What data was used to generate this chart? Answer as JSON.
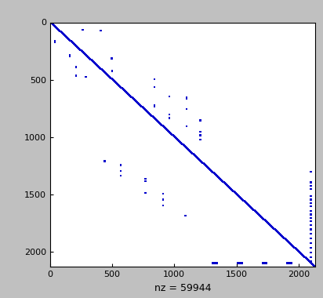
{
  "matrix_size": 2132,
  "nz": 59944,
  "dot_color": "#0000CC",
  "bg_color": "#FFFFFF",
  "frame_bg": "#C0C0C0",
  "xlabel": "nz = 59944",
  "yticks": [
    0,
    500,
    1000,
    1500,
    2000
  ],
  "xticks": [
    0,
    500,
    1000,
    1500,
    2000
  ],
  "band_halfwidth": 13,
  "seed": 12345,
  "off_diag_blocks": [
    {
      "r0": 60,
      "c0": 250,
      "r1": 75,
      "c1": 270
    },
    {
      "r0": 70,
      "c0": 400,
      "r1": 82,
      "c1": 415
    },
    {
      "r0": 155,
      "c0": 30,
      "r1": 170,
      "c1": 45
    },
    {
      "r0": 170,
      "c0": 30,
      "r1": 182,
      "c1": 45
    },
    {
      "r0": 280,
      "c0": 150,
      "r1": 295,
      "c1": 165
    },
    {
      "r0": 295,
      "c0": 150,
      "r1": 310,
      "c1": 165
    },
    {
      "r0": 310,
      "c0": 485,
      "r1": 325,
      "c1": 502
    },
    {
      "r0": 380,
      "c0": 200,
      "r1": 392,
      "c1": 215
    },
    {
      "r0": 390,
      "c0": 200,
      "r1": 402,
      "c1": 215
    },
    {
      "r0": 420,
      "c0": 490,
      "r1": 435,
      "c1": 505
    },
    {
      "r0": 460,
      "c0": 200,
      "r1": 475,
      "c1": 215
    },
    {
      "r0": 470,
      "c0": 280,
      "r1": 485,
      "c1": 295
    },
    {
      "r0": 490,
      "c0": 830,
      "r1": 505,
      "c1": 845
    },
    {
      "r0": 560,
      "c0": 830,
      "r1": 574,
      "c1": 846
    },
    {
      "r0": 640,
      "c0": 950,
      "r1": 655,
      "c1": 966
    },
    {
      "r0": 650,
      "c0": 1090,
      "r1": 665,
      "c1": 1107
    },
    {
      "r0": 660,
      "c0": 1090,
      "r1": 675,
      "c1": 1107
    },
    {
      "r0": 720,
      "c0": 830,
      "r1": 734,
      "c1": 846
    },
    {
      "r0": 730,
      "c0": 830,
      "r1": 744,
      "c1": 846
    },
    {
      "r0": 750,
      "c0": 1090,
      "r1": 765,
      "c1": 1107
    },
    {
      "r0": 800,
      "c0": 950,
      "r1": 815,
      "c1": 966
    },
    {
      "r0": 830,
      "c0": 950,
      "r1": 845,
      "c1": 966
    },
    {
      "r0": 850,
      "c0": 1200,
      "r1": 866,
      "c1": 1216
    },
    {
      "r0": 900,
      "c0": 1090,
      "r1": 915,
      "c1": 1107
    },
    {
      "r0": 950,
      "c0": 1200,
      "r1": 965,
      "c1": 1216
    },
    {
      "r0": 980,
      "c0": 1200,
      "r1": 995,
      "c1": 1216
    },
    {
      "r0": 1020,
      "c0": 1200,
      "r1": 1035,
      "c1": 1216
    },
    {
      "r0": 1200,
      "c0": 430,
      "r1": 1215,
      "c1": 446
    },
    {
      "r0": 1210,
      "c0": 430,
      "r1": 1225,
      "c1": 446
    },
    {
      "r0": 1240,
      "c0": 560,
      "r1": 1255,
      "c1": 576
    },
    {
      "r0": 1290,
      "c0": 560,
      "r1": 1305,
      "c1": 576
    },
    {
      "r0": 1330,
      "c0": 560,
      "r1": 1345,
      "c1": 576
    },
    {
      "r0": 1360,
      "c0": 760,
      "r1": 1375,
      "c1": 776
    },
    {
      "r0": 1380,
      "c0": 760,
      "r1": 1395,
      "c1": 776
    },
    {
      "r0": 1480,
      "c0": 760,
      "r1": 1495,
      "c1": 776
    },
    {
      "r0": 1490,
      "c0": 900,
      "r1": 1505,
      "c1": 916
    },
    {
      "r0": 1540,
      "c0": 900,
      "r1": 1555,
      "c1": 916
    },
    {
      "r0": 1590,
      "c0": 900,
      "r1": 1605,
      "c1": 916
    },
    {
      "r0": 1680,
      "c0": 1080,
      "r1": 1695,
      "c1": 1096
    },
    {
      "r0": 1300,
      "c0": 2090,
      "r1": 1315,
      "c1": 2105
    },
    {
      "r0": 1390,
      "c0": 2090,
      "r1": 1405,
      "c1": 2105
    },
    {
      "r0": 1420,
      "c0": 2090,
      "r1": 1435,
      "c1": 2105
    },
    {
      "r0": 1450,
      "c0": 2090,
      "r1": 1465,
      "c1": 2105
    },
    {
      "r0": 1510,
      "c0": 2090,
      "r1": 1525,
      "c1": 2105
    },
    {
      "r0": 1540,
      "c0": 2090,
      "r1": 1555,
      "c1": 2105
    },
    {
      "r0": 1570,
      "c0": 2090,
      "r1": 1585,
      "c1": 2105
    },
    {
      "r0": 1600,
      "c0": 2090,
      "r1": 1615,
      "c1": 2105
    },
    {
      "r0": 1640,
      "c0": 2090,
      "r1": 1655,
      "c1": 2105
    },
    {
      "r0": 1670,
      "c0": 2090,
      "r1": 1685,
      "c1": 2105
    },
    {
      "r0": 1700,
      "c0": 2090,
      "r1": 1715,
      "c1": 2105
    },
    {
      "r0": 1730,
      "c0": 2090,
      "r1": 1745,
      "c1": 2105
    },
    {
      "r0": 1760,
      "c0": 2090,
      "r1": 1775,
      "c1": 2105
    },
    {
      "r0": 1800,
      "c0": 2090,
      "r1": 1815,
      "c1": 2105
    },
    {
      "r0": 1840,
      "c0": 2090,
      "r1": 1855,
      "c1": 2105
    },
    {
      "r0": 1880,
      "c0": 2090,
      "r1": 1895,
      "c1": 2105
    },
    {
      "r0": 1920,
      "c0": 2090,
      "r1": 1935,
      "c1": 2105
    },
    {
      "r0": 1960,
      "c0": 2090,
      "r1": 1975,
      "c1": 2105
    },
    {
      "r0": 2000,
      "c0": 2090,
      "r1": 2015,
      "c1": 2105
    },
    {
      "r0": 2040,
      "c0": 2090,
      "r1": 2055,
      "c1": 2105
    },
    {
      "r0": 2080,
      "c0": 2090,
      "r1": 2095,
      "c1": 2105
    },
    {
      "r0": 2090,
      "c0": 1300,
      "r1": 2110,
      "c1": 1350
    },
    {
      "r0": 2090,
      "c0": 1500,
      "r1": 2110,
      "c1": 1550
    },
    {
      "r0": 2090,
      "c0": 1700,
      "r1": 2110,
      "c1": 1750
    },
    {
      "r0": 2090,
      "c0": 1900,
      "r1": 2110,
      "c1": 1950
    }
  ]
}
